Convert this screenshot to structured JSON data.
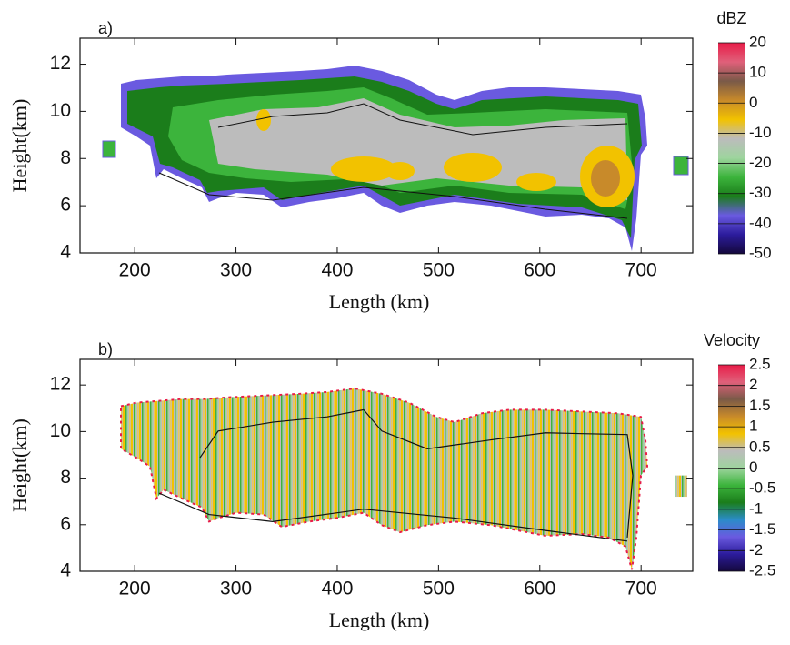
{
  "chart_data": [
    {
      "type": "heatmap",
      "panel_label": "a)",
      "xlabel": "Length (km)",
      "ylabel": "Height(km)",
      "xlim": [
        146,
        751
      ],
      "ylim": [
        4,
        13.1
      ],
      "xticks": [
        200,
        300,
        400,
        500,
        600,
        700
      ],
      "yticks": [
        4,
        6,
        8,
        10,
        12
      ],
      "colorbar": {
        "title": "dBZ",
        "lim": [
          -50,
          20
        ],
        "ticks": [
          -50,
          -40,
          -30,
          -20,
          -10,
          0,
          10,
          20
        ],
        "colors": [
          "#14083c",
          "#2c1c9c",
          "#6a5ae0",
          "#1b7d1b",
          "#3cb43c",
          "#9ed49e",
          "#bcbcbc",
          "#f2c200",
          "#c88a2a",
          "#7a5a48",
          "#e0607a",
          "#e81c48"
        ]
      }
    },
    {
      "type": "heatmap",
      "panel_label": "b)",
      "xlabel": "Length (km)",
      "ylabel": "Height(km)",
      "xlim": [
        146,
        751
      ],
      "ylim": [
        4,
        13.1
      ],
      "xticks": [
        200,
        300,
        400,
        500,
        600,
        700
      ],
      "yticks": [
        4,
        6,
        8,
        10,
        12
      ],
      "colorbar": {
        "title": "Velocity",
        "lim": [
          -2.5,
          2.5
        ],
        "ticks": [
          -2.5,
          -2,
          -1.5,
          -1,
          -0.5,
          0,
          0.5,
          1,
          1.5,
          2,
          2.5
        ],
        "colors": [
          "#14083c",
          "#2c1c9c",
          "#6a5ae0",
          "#2a8cc8",
          "#1b7d1b",
          "#3cb43c",
          "#9ed49e",
          "#bcbcbc",
          "#f2c200",
          "#c88a2a",
          "#7a5a48",
          "#e0607a",
          "#e81c48"
        ]
      }
    }
  ]
}
